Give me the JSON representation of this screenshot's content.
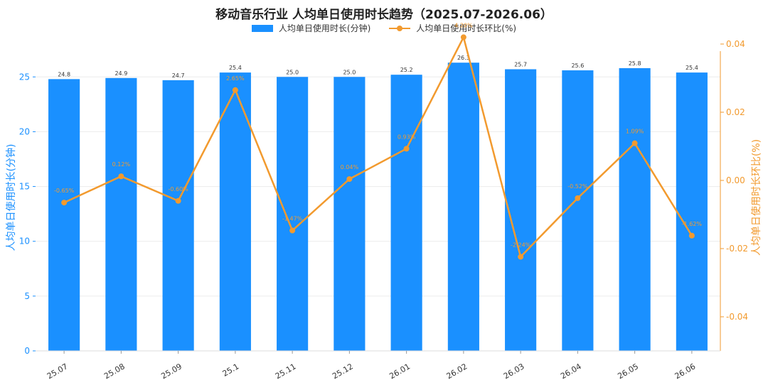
{
  "chart_data": {
    "type": "bar",
    "title": "移动音乐行业 人均单日使用时长趋势（2025.07-2026.06）",
    "categories": [
      "25.07",
      "25.08",
      "25.09",
      "25.1",
      "25.11",
      "25.12",
      "26.01",
      "26.02",
      "26.03",
      "26.04",
      "26.05",
      "26.06"
    ],
    "series": [
      {
        "name": "人均单日使用时长(分钟)",
        "type": "bar",
        "axis": "left",
        "values": [
          24.8,
          24.9,
          24.7,
          25.4,
          25.0,
          25.0,
          25.2,
          26.3,
          25.7,
          25.6,
          25.8,
          25.4
        ],
        "labels": [
          "24.8",
          "24.9",
          "24.7",
          "25.4",
          "25.0",
          "25.0",
          "25.2",
          "26.3",
          "25.7",
          "25.6",
          "25.8",
          "25.4"
        ],
        "color": "#1a90ff"
      },
      {
        "name": "人均单日使用时长环比(%)",
        "type": "line",
        "axis": "right",
        "values": [
          -0.0065,
          0.0012,
          -0.006,
          0.0265,
          -0.0147,
          0.0004,
          0.0093,
          0.042,
          -0.0224,
          -0.0052,
          0.0109,
          -0.0162
        ],
        "labels": [
          "-0.65%",
          "0.12%",
          "-0.60%",
          "2.65%",
          "-1.47%",
          "0.04%",
          "0.93%",
          "4.20%",
          "-2.24%",
          "-0.52%",
          "1.09%",
          "-1.62%"
        ],
        "color": "#f29a2e"
      }
    ],
    "ylabel": "人均单日使用时长(分钟)",
    "ylabel_right": "人均单日使用时长环比(%)",
    "ylim": [
      0,
      28
    ],
    "yticks": [
      0,
      5,
      10,
      15,
      20,
      25
    ],
    "ylim_right": [
      -0.05,
      0.04
    ],
    "yticks_right": [
      -0.04,
      -0.02,
      0.0,
      0.02,
      0.04
    ],
    "ytick_labels_right": [
      "-0.04",
      "-0.02",
      "0.00",
      "0.02",
      "0.04"
    ],
    "legend_position": "top-center",
    "grid": true
  }
}
